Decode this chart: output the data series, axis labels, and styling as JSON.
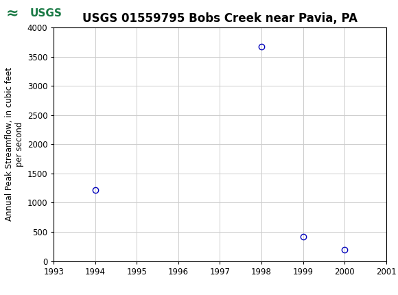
{
  "title": "USGS 01559795 Bobs Creek near Pavia, PA",
  "ylabel_line1": "Annual Peak Streamflow, in cubic feet",
  "ylabel_line2": "per second",
  "xlim": [
    1993,
    2001
  ],
  "ylim": [
    0,
    4000
  ],
  "xticks": [
    1993,
    1994,
    1995,
    1996,
    1997,
    1998,
    1999,
    2000,
    2001
  ],
  "yticks": [
    0,
    500,
    1000,
    1500,
    2000,
    2500,
    3000,
    3500,
    4000
  ],
  "years": [
    1994,
    1998,
    1999,
    2000
  ],
  "flows": [
    1220,
    3670,
    420,
    200
  ],
  "marker_color": "#0000bb",
  "marker_size": 6,
  "marker_linewidth": 1.0,
  "grid_color": "#cccccc",
  "bg_color": "#ffffff",
  "header_color": "#1a7a45",
  "title_fontsize": 12,
  "tick_fontsize": 8.5,
  "ylabel_fontsize": 8.5,
  "usgs_logo_text": "USGS",
  "header_text_color": "#ffffff",
  "logo_bg_color": "#ffffff",
  "logo_text_color": "#1a7a45"
}
